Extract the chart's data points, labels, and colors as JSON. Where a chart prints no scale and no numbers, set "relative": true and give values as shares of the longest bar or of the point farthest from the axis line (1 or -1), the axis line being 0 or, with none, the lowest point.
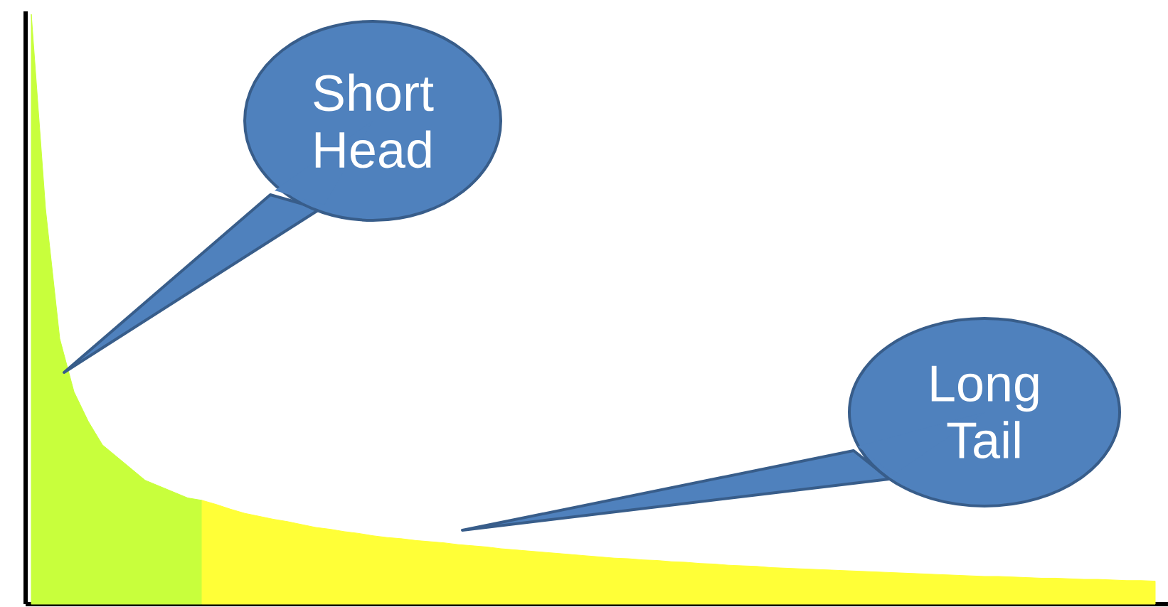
{
  "chart_data": {
    "type": "area",
    "relative": true,
    "categories": [
      null,
      null,
      null,
      null,
      null,
      null,
      null,
      null,
      null,
      null,
      null,
      null,
      null,
      null,
      null,
      null,
      null,
      null,
      null,
      null,
      null,
      null,
      null,
      null,
      null,
      null,
      null,
      null,
      null,
      null,
      null,
      null,
      null,
      null,
      null,
      null,
      null,
      null,
      null,
      null,
      null,
      null,
      null,
      null,
      null,
      null,
      null,
      null,
      null,
      null,
      null,
      null,
      null,
      null,
      null,
      null,
      null,
      null,
      null,
      null,
      null,
      null,
      null,
      null,
      null,
      null,
      null,
      null,
      null,
      null,
      null,
      null,
      null,
      null,
      null,
      null,
      null,
      null,
      null,
      null
    ],
    "series": [
      {
        "color": "#c8ff3c",
        "values": [
          1.0,
          0.67,
          0.45,
          0.36,
          0.31,
          0.27,
          0.25,
          0.23,
          0.21,
          0.2,
          0.19,
          0.18,
          0.176,
          null,
          null,
          null,
          null,
          null,
          null,
          null,
          null,
          null,
          null,
          null,
          null,
          null,
          null,
          null,
          null,
          null,
          null,
          null,
          null,
          null,
          null,
          null,
          null,
          null,
          null,
          null,
          null,
          null,
          null,
          null,
          null,
          null,
          null,
          null,
          null,
          null,
          null,
          null,
          null,
          null,
          null,
          null,
          null,
          null,
          null,
          null,
          null,
          null,
          null,
          null,
          null,
          null,
          null,
          null,
          null,
          null,
          null,
          null,
          null,
          null,
          null,
          null,
          null,
          null,
          null,
          null
        ]
      },
      {
        "color": "#ffff37",
        "values": [
          null,
          null,
          null,
          null,
          null,
          null,
          null,
          null,
          null,
          null,
          null,
          null,
          0.176,
          0.169,
          0.161,
          0.154,
          0.149,
          0.144,
          0.14,
          0.135,
          0.13,
          0.127,
          0.123,
          0.12,
          0.116,
          0.113,
          0.111,
          0.108,
          0.106,
          0.104,
          0.101,
          0.099,
          0.097,
          0.094,
          0.092,
          0.09,
          0.088,
          0.086,
          0.084,
          0.082,
          0.08,
          0.078,
          0.077,
          0.075,
          0.074,
          0.072,
          0.071,
          0.069,
          0.068,
          0.066,
          0.065,
          0.064,
          0.062,
          0.061,
          0.06,
          0.059,
          0.058,
          0.057,
          0.056,
          0.055,
          0.054,
          0.053,
          0.052,
          0.051,
          0.05,
          0.049,
          0.048,
          0.047,
          0.047,
          0.046,
          0.045,
          0.044,
          0.044,
          0.043,
          0.042,
          0.042,
          0.041,
          0.04,
          0.04,
          0.039
        ]
      }
    ],
    "annotations": [
      "Short Head",
      "Long Tail"
    ]
  }
}
